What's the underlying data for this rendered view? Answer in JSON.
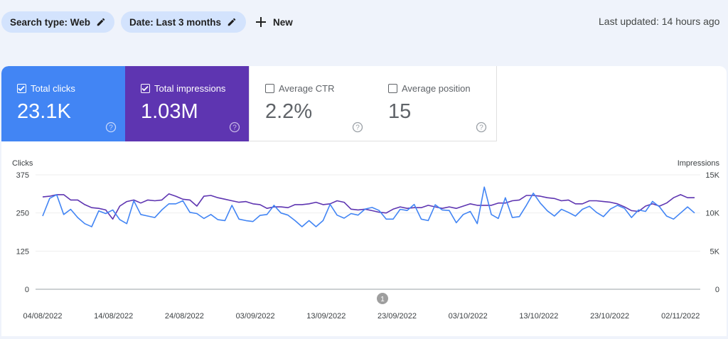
{
  "filters": {
    "search_type": "Search type: Web",
    "date": "Date: Last 3 months",
    "new_label": "New"
  },
  "last_updated": "Last updated: 14 hours ago",
  "metrics": [
    {
      "label": "Total clicks",
      "value": "23.1K",
      "checked": true,
      "color": "#4285f4"
    },
    {
      "label": "Total impressions",
      "value": "1.03M",
      "checked": true,
      "color": "#5e35b1"
    },
    {
      "label": "Average CTR",
      "value": "2.2%",
      "checked": false
    },
    {
      "label": "Average position",
      "value": "15",
      "checked": false
    }
  ],
  "chart_data": {
    "type": "line",
    "left_axis_label": "Clicks",
    "right_axis_label": "Impressions",
    "left_ticks": [
      "375",
      "250",
      "125",
      "0"
    ],
    "right_ticks": [
      "15K",
      "10K",
      "5K",
      "0"
    ],
    "ylim_left": [
      0,
      375
    ],
    "ylim_right": [
      0,
      15000
    ],
    "x_ticks": [
      "04/08/2022",
      "14/08/2022",
      "24/08/2022",
      "03/09/2022",
      "13/09/2022",
      "23/09/2022",
      "03/10/2022",
      "13/10/2022",
      "23/10/2022",
      "02/11/2022"
    ],
    "annotation": "1",
    "series": [
      {
        "axis": "left",
        "color": "#4285f4",
        "values": [
          240,
          298,
          310,
          245,
          262,
          235,
          215,
          205,
          257,
          248,
          260,
          228,
          215,
          290,
          245,
          240,
          235,
          260,
          280,
          280,
          290,
          252,
          248,
          232,
          245,
          228,
          225,
          275,
          230,
          225,
          222,
          242,
          245,
          275,
          250,
          243,
          225,
          205,
          225,
          205,
          225,
          278,
          243,
          233,
          248,
          243,
          263,
          268,
          258,
          230,
          230,
          262,
          258,
          278,
          230,
          225,
          277,
          260,
          258,
          218,
          245,
          255,
          215,
          335,
          245,
          232,
          300,
          235,
          238,
          275,
          315,
          282,
          257,
          240,
          262,
          252,
          240,
          262,
          272,
          252,
          238,
          263,
          275,
          265,
          235,
          260,
          255,
          288,
          270,
          240,
          230,
          250,
          270,
          250
        ]
      },
      {
        "axis": "right",
        "color": "#5e35b1",
        "values": [
          12100,
          12200,
          12400,
          12400,
          11700,
          11700,
          11100,
          10700,
          10600,
          10400,
          9200,
          10900,
          11500,
          11700,
          11300,
          11700,
          11600,
          11700,
          12500,
          12200,
          11800,
          11700,
          10900,
          12200,
          12300,
          12000,
          11800,
          11600,
          11400,
          11500,
          11200,
          11100,
          10600,
          10800,
          10800,
          10700,
          11100,
          11100,
          11200,
          11400,
          11100,
          11200,
          11600,
          11400,
          10500,
          10400,
          10500,
          10300,
          10100,
          10000,
          10500,
          10800,
          10600,
          10700,
          10700,
          11000,
          10800,
          10600,
          10800,
          10600,
          10900,
          11200,
          11000,
          11000,
          11000,
          11300,
          11300,
          11600,
          11700,
          12300,
          12300,
          12200,
          12000,
          11900,
          11600,
          11700,
          11200,
          11200,
          11600,
          11600,
          11500,
          11400,
          11200,
          10800,
          10300,
          10200,
          10900,
          11200,
          10900,
          11300,
          12000,
          12400,
          12000,
          12000
        ]
      }
    ]
  }
}
